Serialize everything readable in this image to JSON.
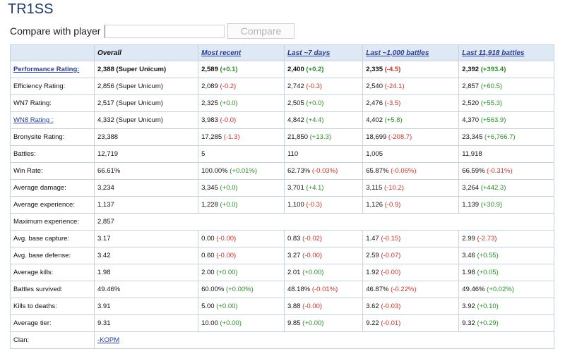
{
  "player": {
    "name": "TR1SS"
  },
  "compare": {
    "label": "Compare with player",
    "input_value": "",
    "button_label": "Compare"
  },
  "table": {
    "columns": [
      "Overall",
      "Most recent",
      "Last ~7 days",
      "Last ~1,000 battles",
      "Last 11,918 battles"
    ],
    "rows": [
      {
        "label": "Performance Rating:",
        "link": true,
        "bold": true,
        "cells": [
          {
            "v": "2,388",
            "d": "(Super Unicum)",
            "s": ""
          },
          {
            "v": "2,589",
            "d": "(+0.1)",
            "s": "pos"
          },
          {
            "v": "2,400",
            "d": "(+0.2)",
            "s": "pos"
          },
          {
            "v": "2,335",
            "d": "(-4.5)",
            "s": "neg"
          },
          {
            "v": "2,392",
            "d": "(+393.4)",
            "s": "pos"
          }
        ]
      },
      {
        "label": "Efficiency Rating:",
        "cells": [
          {
            "v": "2,856",
            "d": "(Super Unicum)",
            "s": ""
          },
          {
            "v": "2,089",
            "d": "(-0.2)",
            "s": "neg"
          },
          {
            "v": "2,742",
            "d": "(-0.3)",
            "s": "neg"
          },
          {
            "v": "2,540",
            "d": "(-24.1)",
            "s": "neg"
          },
          {
            "v": "2,857",
            "d": "(+60.5)",
            "s": "pos"
          }
        ]
      },
      {
        "label": "WN7 Rating:",
        "cells": [
          {
            "v": "2,517",
            "d": "(Super Unicum)",
            "s": ""
          },
          {
            "v": "2,325",
            "d": "(+0.0)",
            "s": "pos"
          },
          {
            "v": "2,505",
            "d": "(+0.0)",
            "s": "pos"
          },
          {
            "v": "2,476",
            "d": "(-3.5)",
            "s": "neg"
          },
          {
            "v": "2,520",
            "d": "(+55.3)",
            "s": "pos"
          }
        ]
      },
      {
        "label": "WN8 Rating :",
        "link": true,
        "cells": [
          {
            "v": "4,332",
            "d": "(Super Unicum)",
            "s": ""
          },
          {
            "v": "3,983",
            "d": "(-0.0)",
            "s": "neg"
          },
          {
            "v": "4,842",
            "d": "(+4.4)",
            "s": "pos"
          },
          {
            "v": "4,402",
            "d": "(+5.8)",
            "s": "pos"
          },
          {
            "v": "4,370",
            "d": "(+563.9)",
            "s": "pos"
          }
        ]
      },
      {
        "label": "Bronysite Rating:",
        "cells": [
          {
            "v": "23,388",
            "d": "",
            "s": ""
          },
          {
            "v": "17,285",
            "d": "(-1.3)",
            "s": "neg"
          },
          {
            "v": "21,850",
            "d": "(+13.3)",
            "s": "pos"
          },
          {
            "v": "18,699",
            "d": "(-208.7)",
            "s": "neg"
          },
          {
            "v": "23,345",
            "d": "(+6,766.7)",
            "s": "pos"
          }
        ]
      },
      {
        "label": "Battles:",
        "cells": [
          {
            "v": "12,719",
            "d": "",
            "s": ""
          },
          {
            "v": "5",
            "d": "",
            "s": ""
          },
          {
            "v": "110",
            "d": "",
            "s": ""
          },
          {
            "v": "1,005",
            "d": "",
            "s": ""
          },
          {
            "v": "11,918",
            "d": "",
            "s": ""
          }
        ]
      },
      {
        "label": "Win Rate:",
        "cells": [
          {
            "v": "66.61%",
            "d": "",
            "s": ""
          },
          {
            "v": "100.00%",
            "d": "(+0.01%)",
            "s": "pos"
          },
          {
            "v": "62.73%",
            "d": "(-0.03%)",
            "s": "neg"
          },
          {
            "v": "65.87%",
            "d": "(-0.06%)",
            "s": "neg"
          },
          {
            "v": "66.59%",
            "d": "(-0.31%)",
            "s": "neg"
          }
        ]
      },
      {
        "label": "Average damage:",
        "cells": [
          {
            "v": "3,234",
            "d": "",
            "s": ""
          },
          {
            "v": "3,345",
            "d": "(+0.0)",
            "s": "pos"
          },
          {
            "v": "3,701",
            "d": "(+4.1)",
            "s": "pos"
          },
          {
            "v": "3,115",
            "d": "(-10.2)",
            "s": "neg"
          },
          {
            "v": "3,264",
            "d": "(+442.3)",
            "s": "pos"
          }
        ]
      },
      {
        "label": "Average experience:",
        "cells": [
          {
            "v": "1,137",
            "d": "",
            "s": ""
          },
          {
            "v": "1,228",
            "d": "(+0.0)",
            "s": "pos"
          },
          {
            "v": "1,100",
            "d": "(-0.3)",
            "s": "neg"
          },
          {
            "v": "1,126",
            "d": "(-0.9)",
            "s": "neg"
          },
          {
            "v": "1,139",
            "d": "(+30.9)",
            "s": "pos"
          }
        ]
      },
      {
        "label": "Maximum experience:",
        "span": true,
        "cells": [
          {
            "v": "2,857",
            "d": "",
            "s": ""
          }
        ]
      },
      {
        "label": "Avg. base capture:",
        "cells": [
          {
            "v": "3.17",
            "d": "",
            "s": ""
          },
          {
            "v": "0.00",
            "d": "(-0.00)",
            "s": "neg"
          },
          {
            "v": "0.83",
            "d": "(-0.02)",
            "s": "neg"
          },
          {
            "v": "1.47",
            "d": "(-0.15)",
            "s": "neg"
          },
          {
            "v": "2.99",
            "d": "(-2.73)",
            "s": "neg"
          }
        ]
      },
      {
        "label": "Avg. base defense:",
        "cells": [
          {
            "v": "3.42",
            "d": "",
            "s": ""
          },
          {
            "v": "0.60",
            "d": "(-0.00)",
            "s": "neg"
          },
          {
            "v": "3.27",
            "d": "(-0.00)",
            "s": "neg"
          },
          {
            "v": "2.59",
            "d": "(-0.07)",
            "s": "neg"
          },
          {
            "v": "3.46",
            "d": "(+0.55)",
            "s": "pos"
          }
        ]
      },
      {
        "label": "Average kills:",
        "cells": [
          {
            "v": "1.98",
            "d": "",
            "s": ""
          },
          {
            "v": "2.00",
            "d": "(+0.00)",
            "s": "pos"
          },
          {
            "v": "2.01",
            "d": "(+0.00)",
            "s": "pos"
          },
          {
            "v": "1.92",
            "d": "(-0.00)",
            "s": "neg"
          },
          {
            "v": "1.98",
            "d": "(+0.05)",
            "s": "pos"
          }
        ]
      },
      {
        "label": "Battles survived:",
        "cells": [
          {
            "v": "49.46%",
            "d": "",
            "s": ""
          },
          {
            "v": "60.00%",
            "d": "(+0.00%)",
            "s": "pos"
          },
          {
            "v": "48.18%",
            "d": "(-0.01%)",
            "s": "neg"
          },
          {
            "v": "46.87%",
            "d": "(-0.22%)",
            "s": "neg"
          },
          {
            "v": "49.46%",
            "d": "(+0.02%)",
            "s": "pos"
          }
        ]
      },
      {
        "label": "Kills to deaths:",
        "cells": [
          {
            "v": "3.91",
            "d": "",
            "s": ""
          },
          {
            "v": "5.00",
            "d": "(+0.00)",
            "s": "pos"
          },
          {
            "v": "3.88",
            "d": "(-0.00)",
            "s": "neg"
          },
          {
            "v": "3.62",
            "d": "(-0.03)",
            "s": "neg"
          },
          {
            "v": "3.92",
            "d": "(+0.10)",
            "s": "pos"
          }
        ]
      },
      {
        "label": "Average tier:",
        "cells": [
          {
            "v": "9.31",
            "d": "",
            "s": ""
          },
          {
            "v": "10.00",
            "d": "(+0.00)",
            "s": "pos"
          },
          {
            "v": "9.85",
            "d": "(+0.00)",
            "s": "pos"
          },
          {
            "v": "9.22",
            "d": "(-0.01)",
            "s": "neg"
          },
          {
            "v": "9.32",
            "d": "(+0.29)",
            "s": "pos"
          }
        ]
      },
      {
        "label": "Clan:",
        "span": true,
        "clan": true,
        "cells": [
          {
            "v": "-KOPM",
            "d": "",
            "s": ""
          }
        ]
      }
    ]
  },
  "colors": {
    "header_bg": "#dfe9f5",
    "link": "#2a3f8f",
    "positive": "#2e8b2e",
    "negative": "#c0392b",
    "title": "#1f3a68"
  }
}
